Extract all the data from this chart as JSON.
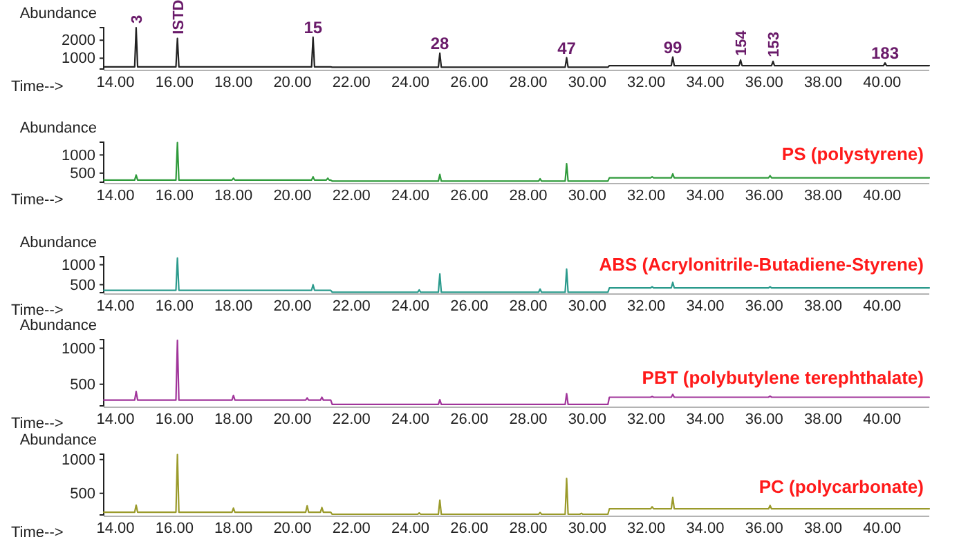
{
  "chart_data": [
    {
      "type": "line",
      "xlabel": "Time-->",
      "ylabel": "Abundance",
      "xlim": [
        13.6,
        41.6
      ],
      "xticks": [
        {
          "value": 14,
          "label": "14.00"
        },
        {
          "value": 16,
          "label": "16.00"
        },
        {
          "value": 18,
          "label": "18.00"
        },
        {
          "value": 20,
          "label": "20.00"
        },
        {
          "value": 22,
          "label": "22.00"
        },
        {
          "value": 24,
          "label": "24.00"
        },
        {
          "value": 26,
          "label": "26.00"
        },
        {
          "value": 28,
          "label": "28.00"
        },
        {
          "value": 30,
          "label": "30.00"
        },
        {
          "value": 32,
          "label": "32.00"
        },
        {
          "value": 34,
          "label": "34.00"
        },
        {
          "value": 36,
          "label": "36.00"
        },
        {
          "value": 38,
          "label": "38.00"
        },
        {
          "value": 40,
          "label": "40.00"
        }
      ],
      "ylim": [
        400,
        2700
      ],
      "yticks": [
        1000,
        2000
      ],
      "series": [
        {
          "color": "#222222",
          "x": [
            13.6,
            14.65,
            14.7,
            14.75,
            16.05,
            16.1,
            16.15,
            20.65,
            20.7,
            20.75,
            21.3,
            21.35,
            24.95,
            25.0,
            25.05,
            29.25,
            29.3,
            29.35,
            30.7,
            30.75,
            32.85,
            32.9,
            32.95,
            35.15,
            35.2,
            35.25,
            36.25,
            36.3,
            36.35,
            40.05,
            40.1,
            40.15,
            41.6
          ],
          "values": [
            520,
            520,
            2700,
            520,
            520,
            2100,
            520,
            520,
            2170,
            520,
            520,
            500,
            500,
            1280,
            500,
            500,
            1030,
            500,
            500,
            590,
            590,
            1070,
            590,
            590,
            900,
            590,
            590,
            830,
            590,
            590,
            740,
            590,
            590
          ]
        }
      ],
      "annotations": [
        {
          "text": "3",
          "x": 14.7,
          "y": 2700
        },
        {
          "text": "ISTD",
          "x": 16.1,
          "y": 2100
        },
        {
          "text": "15",
          "x": 20.7,
          "y": 2170
        },
        {
          "text": "28",
          "x": 25.0,
          "y": 1280
        },
        {
          "text": "47",
          "x": 29.3,
          "y": 1030
        },
        {
          "text": "99",
          "x": 32.9,
          "y": 1070
        },
        {
          "text": "154",
          "x": 35.2,
          "y": 900
        },
        {
          "text": "153",
          "x": 36.3,
          "y": 830
        },
        {
          "text": "183",
          "x": 40.1,
          "y": 740
        }
      ]
    },
    {
      "type": "line",
      "title": "PS (polystyrene)",
      "xlabel": "Time-->",
      "ylabel": "Abundance",
      "xlim": [
        13.6,
        41.6
      ],
      "xticks": [
        {
          "value": 14,
          "label": "14.00"
        },
        {
          "value": 16,
          "label": "16.00"
        },
        {
          "value": 18,
          "label": "18.00"
        },
        {
          "value": 20,
          "label": "20.00"
        },
        {
          "value": 22,
          "label": "22.00"
        },
        {
          "value": 24,
          "label": "24.00"
        },
        {
          "value": 26,
          "label": "26.00"
        },
        {
          "value": 28,
          "label": "28.00"
        },
        {
          "value": 30,
          "label": "30.00"
        },
        {
          "value": 32,
          "label": "32.00"
        },
        {
          "value": 34,
          "label": "34.00"
        },
        {
          "value": 36,
          "label": "36.00"
        },
        {
          "value": 38,
          "label": "38.00"
        },
        {
          "value": 40,
          "label": "40.00"
        }
      ],
      "ylim": [
        250,
        1350
      ],
      "yticks": [
        500,
        1000
      ],
      "series": [
        {
          "color": "#2e9a3a",
          "x": [
            13.6,
            14.65,
            14.7,
            14.75,
            16.05,
            16.1,
            16.15,
            17.95,
            18.0,
            18.05,
            20.65,
            20.7,
            20.75,
            21.15,
            21.2,
            21.25,
            21.3,
            21.35,
            24.95,
            25.0,
            25.05,
            28.35,
            28.4,
            28.45,
            29.25,
            29.3,
            29.35,
            30.7,
            30.75,
            32.15,
            32.2,
            32.25,
            32.85,
            32.9,
            32.95,
            36.15,
            36.2,
            36.25,
            41.6
          ],
          "values": [
            310,
            310,
            450,
            310,
            310,
            1340,
            310,
            310,
            360,
            310,
            310,
            400,
            310,
            310,
            360,
            310,
            310,
            280,
            280,
            465,
            280,
            280,
            345,
            280,
            280,
            760,
            280,
            280,
            370,
            370,
            400,
            370,
            370,
            480,
            370,
            370,
            430,
            370,
            370
          ]
        }
      ]
    },
    {
      "type": "line",
      "title": "ABS (Acrylonitrile-Butadiene-Styrene)",
      "xlabel": "Time-->",
      "ylabel": "Abundance",
      "xlim": [
        13.6,
        41.6
      ],
      "xticks": [
        {
          "value": 14,
          "label": "14.00"
        },
        {
          "value": 16,
          "label": "16.00"
        },
        {
          "value": 18,
          "label": "18.00"
        },
        {
          "value": 20,
          "label": "20.00"
        },
        {
          "value": 22,
          "label": "22.00"
        },
        {
          "value": 24,
          "label": "24.00"
        },
        {
          "value": 26,
          "label": "26.00"
        },
        {
          "value": 28,
          "label": "28.00"
        },
        {
          "value": 30,
          "label": "30.00"
        },
        {
          "value": 32,
          "label": "32.00"
        },
        {
          "value": 34,
          "label": "34.00"
        },
        {
          "value": 36,
          "label": "36.00"
        },
        {
          "value": 38,
          "label": "38.00"
        },
        {
          "value": 40,
          "label": "40.00"
        }
      ],
      "ylim": [
        300,
        1200
      ],
      "yticks": [
        500,
        1000
      ],
      "series": [
        {
          "color": "#2a9a8c",
          "x": [
            13.6,
            16.05,
            16.1,
            16.15,
            20.65,
            20.7,
            20.75,
            21.3,
            21.35,
            24.25,
            24.3,
            24.35,
            24.95,
            25.0,
            25.05,
            28.35,
            28.4,
            28.45,
            29.25,
            29.3,
            29.35,
            30.7,
            30.75,
            32.15,
            32.2,
            32.25,
            32.85,
            32.9,
            32.95,
            36.15,
            36.2,
            36.25,
            41.6
          ],
          "values": [
            360,
            360,
            1170,
            360,
            360,
            500,
            360,
            360,
            310,
            310,
            370,
            310,
            310,
            770,
            310,
            310,
            390,
            310,
            310,
            890,
            310,
            310,
            420,
            420,
            450,
            420,
            420,
            560,
            420,
            420,
            450,
            420,
            420
          ]
        }
      ]
    },
    {
      "type": "line",
      "title": "PBT (polybutylene terephthalate)",
      "xlabel": "Time-->",
      "ylabel": "Abundance",
      "xlim": [
        13.6,
        41.6
      ],
      "xticks": [
        {
          "value": 14,
          "label": "14.00"
        },
        {
          "value": 16,
          "label": "16.00"
        },
        {
          "value": 18,
          "label": "18.00"
        },
        {
          "value": 20,
          "label": "20.00"
        },
        {
          "value": 22,
          "label": "22.00"
        },
        {
          "value": 24,
          "label": "24.00"
        },
        {
          "value": 26,
          "label": "26.00"
        },
        {
          "value": 28,
          "label": "28.00"
        },
        {
          "value": 30,
          "label": "30.00"
        },
        {
          "value": 32,
          "label": "32.00"
        },
        {
          "value": 34,
          "label": "34.00"
        },
        {
          "value": 36,
          "label": "36.00"
        },
        {
          "value": 38,
          "label": "38.00"
        },
        {
          "value": 40,
          "label": "40.00"
        }
      ],
      "ylim": [
        200,
        1120
      ],
      "yticks": [
        500,
        1000
      ],
      "series": [
        {
          "color": "#a0349a",
          "x": [
            13.6,
            14.65,
            14.7,
            14.75,
            16.05,
            16.1,
            16.15,
            17.95,
            18.0,
            18.05,
            20.45,
            20.5,
            20.55,
            20.95,
            21.0,
            21.05,
            21.3,
            21.35,
            24.95,
            25.0,
            25.05,
            29.25,
            29.3,
            29.35,
            30.7,
            30.75,
            32.15,
            32.2,
            32.25,
            32.85,
            32.9,
            32.95,
            36.15,
            36.2,
            36.25,
            41.6
          ],
          "values": [
            280,
            280,
            400,
            280,
            280,
            1110,
            280,
            280,
            345,
            280,
            280,
            310,
            280,
            280,
            320,
            280,
            280,
            220,
            220,
            285,
            220,
            220,
            370,
            220,
            220,
            320,
            320,
            330,
            320,
            320,
            360,
            320,
            320,
            335,
            320,
            320
          ]
        }
      ]
    },
    {
      "type": "line",
      "title": "PC (polycarbonate)",
      "xlabel": "Time-->",
      "ylabel": "Abundance",
      "xlim": [
        13.6,
        41.6
      ],
      "xticks": [
        {
          "value": 14,
          "label": "14.00"
        },
        {
          "value": 16,
          "label": "16.00"
        },
        {
          "value": 18,
          "label": "18.00"
        },
        {
          "value": 20,
          "label": "20.00"
        },
        {
          "value": 22,
          "label": "22.00"
        },
        {
          "value": 24,
          "label": "24.00"
        },
        {
          "value": 26,
          "label": "26.00"
        },
        {
          "value": 28,
          "label": "28.00"
        },
        {
          "value": 30,
          "label": "30.00"
        },
        {
          "value": 32,
          "label": "32.00"
        },
        {
          "value": 34,
          "label": "34.00"
        },
        {
          "value": 36,
          "label": "36.00"
        },
        {
          "value": 38,
          "label": "38.00"
        },
        {
          "value": 40,
          "label": "40.00"
        }
      ],
      "ylim": [
        180,
        1080
      ],
      "yticks": [
        500,
        1000
      ],
      "series": [
        {
          "color": "#9a9a2a",
          "x": [
            13.6,
            14.65,
            14.7,
            14.75,
            16.05,
            16.1,
            16.15,
            17.95,
            18.0,
            18.05,
            20.45,
            20.5,
            20.55,
            20.95,
            21.0,
            21.05,
            21.3,
            21.35,
            24.25,
            24.3,
            24.35,
            24.95,
            25.0,
            25.05,
            28.35,
            28.4,
            28.45,
            29.25,
            29.3,
            29.35,
            29.75,
            29.8,
            29.85,
            30.7,
            30.75,
            32.15,
            32.2,
            32.25,
            32.85,
            32.9,
            32.95,
            36.15,
            36.2,
            36.25,
            41.6
          ],
          "values": [
            220,
            220,
            325,
            220,
            220,
            1075,
            220,
            220,
            280,
            220,
            220,
            315,
            220,
            220,
            290,
            220,
            220,
            190,
            190,
            210,
            190,
            190,
            400,
            190,
            190,
            215,
            190,
            190,
            720,
            190,
            190,
            205,
            190,
            190,
            270,
            270,
            300,
            270,
            270,
            440,
            270,
            270,
            320,
            270,
            270
          ]
        }
      ]
    }
  ]
}
